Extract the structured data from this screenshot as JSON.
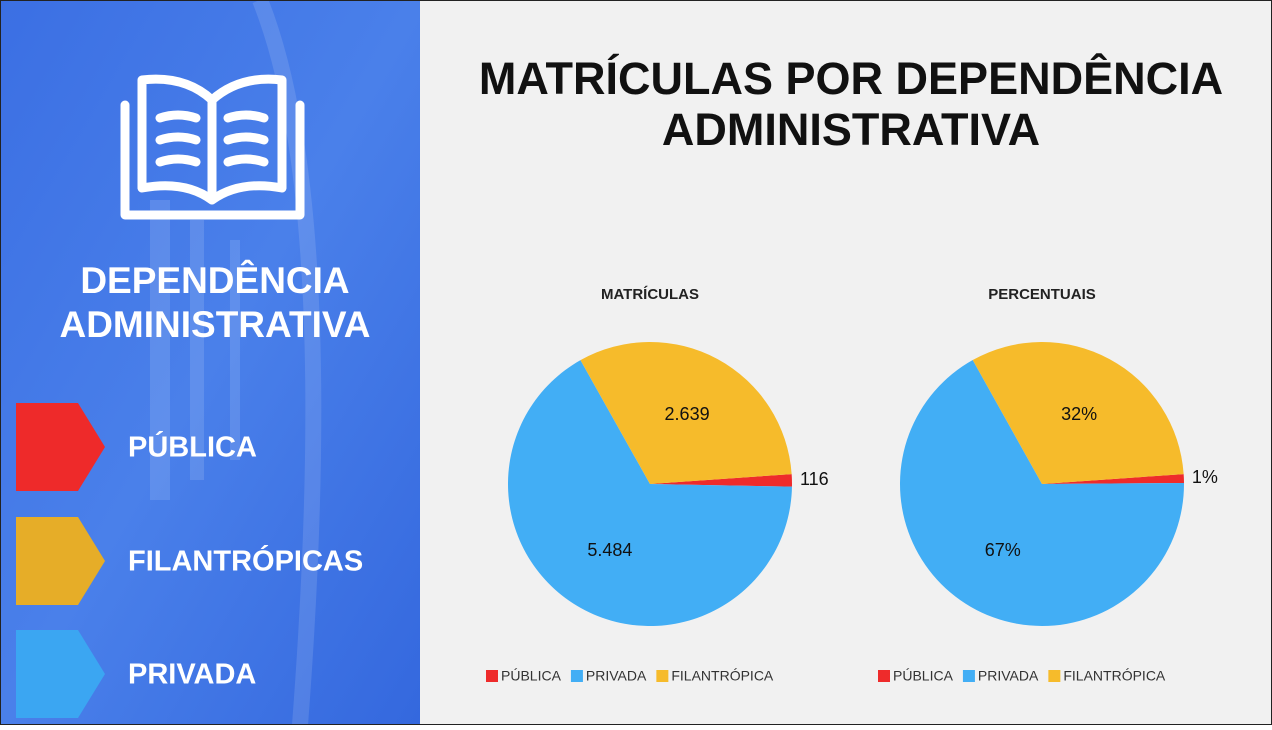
{
  "title_lines": [
    "MATRÍCULAS POR DEPENDÊNCIA",
    "ADMINISTRATIVA"
  ],
  "sidebar": {
    "title_lines": [
      "DEPENDÊNCIA",
      "ADMINISTRATIVA"
    ],
    "items": [
      {
        "label": "PÚBLICA",
        "color": "#ee2a2a"
      },
      {
        "label": "FILANTRÓPICAS",
        "color": "#e6ad28"
      },
      {
        "label": "PRIVADA",
        "color": "#3ba6f2"
      }
    ]
  },
  "chart_data": [
    {
      "type": "pie",
      "title": "MATRÍCULAS",
      "categories": [
        "PÚBLICA",
        "PRIVADA",
        "FILANTRÓPICA"
      ],
      "values": [
        116,
        5484,
        2639
      ],
      "value_labels": [
        "116",
        "5.484",
        "2.639"
      ],
      "colors": [
        "#ee2b2b",
        "#42aef5",
        "#f6bb2b"
      ]
    },
    {
      "type": "pie",
      "title": "PERCENTUAIS",
      "categories": [
        "PÚBLICA",
        "PRIVADA",
        "FILANTRÓPICA"
      ],
      "values": [
        1,
        67,
        32
      ],
      "value_labels": [
        "1%",
        "67%",
        "32%"
      ],
      "colors": [
        "#ee2b2b",
        "#42aef5",
        "#f6bb2b"
      ]
    }
  ]
}
